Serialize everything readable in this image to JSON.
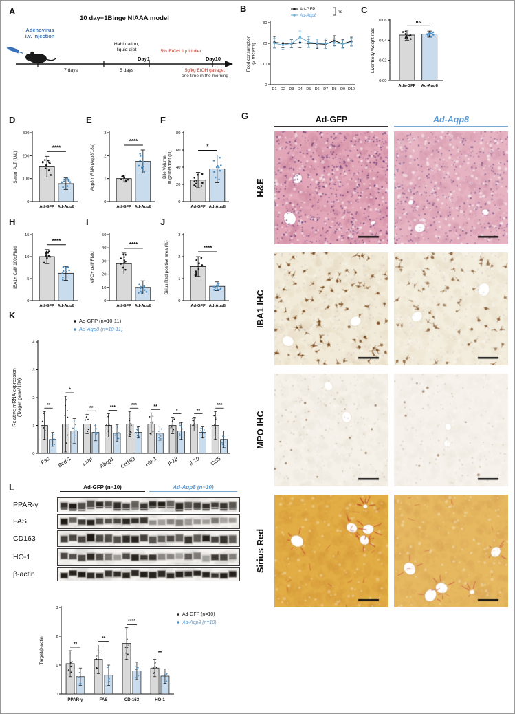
{
  "panels": {
    "A": "A",
    "B": "B",
    "C": "C",
    "D": "D",
    "E": "E",
    "F": "F",
    "G": "G",
    "H": "H",
    "I": "I",
    "J": "J",
    "K": "K",
    "L": "L"
  },
  "colors": {
    "accent_blue": "#5b9bd5",
    "bar_gray": "#d9d9d9",
    "bar_blue": "#c9dced",
    "dot_black": "#1a1a1a",
    "dot_blue": "#4d8fc4",
    "red_text": "#c0392b",
    "axis": "#111111"
  },
  "panelA": {
    "model_title": "10 day+1Binge NIAAA model",
    "adenovirus_label_line1": "Adenovirus",
    "adenovirus_label_line2": "i.v. injection",
    "habituation_line1": "Habituation,",
    "habituation_line2": "liquid diet",
    "etoh_diet_label": "5% EtOH liquid diet",
    "day1_label": "Day1",
    "day10_label": "Day10",
    "segment1_label": "7 days",
    "segment2_label": "5 days",
    "gavage_line1": "5g/kg EtOH gavage,",
    "gavage_line2": "one time in the morning"
  },
  "chart_data": {
    "B": {
      "type": "line",
      "ylabel_lines": [
        "Food consumption",
        "(2 mice/ml)"
      ],
      "x": [
        "D1",
        "D2",
        "D3",
        "D4",
        "D5",
        "D6",
        "D7",
        "D8",
        "D9",
        "D10"
      ],
      "ylim": [
        0,
        30
      ],
      "yticks": [
        0,
        10,
        20,
        30
      ],
      "series": [
        {
          "name": "Ad-GFP",
          "color": "#1a1a1a",
          "values": [
            20.5,
            20.0,
            19.8,
            20.3,
            20.0,
            19.8,
            19.5,
            21.3,
            19.8,
            21.0
          ],
          "errors": [
            2.8,
            2.2,
            2.0,
            2.4,
            2.0,
            2.3,
            2.0,
            2.4,
            2.0,
            2.0
          ]
        },
        {
          "name": "Ad-Aqp8",
          "color": "#6baed6",
          "values": [
            20.0,
            19.2,
            19.9,
            23.0,
            20.6,
            20.0,
            19.9,
            20.3,
            19.6,
            20.4
          ],
          "errors": [
            2.4,
            2.0,
            2.0,
            3.0,
            2.6,
            2.0,
            2.4,
            2.0,
            2.0,
            2.0
          ]
        }
      ],
      "sig": "ns"
    },
    "C": {
      "type": "pairbar",
      "ylabel_lines": [
        "Liver/Body Weight ratio"
      ],
      "categories": [
        "AdV-GFP",
        "Ad-Aqp8"
      ],
      "values": [
        0.045,
        0.046
      ],
      "errors": [
        0.005,
        0.003
      ],
      "ylim": [
        0,
        0.06
      ],
      "yticks": [
        0,
        0.02,
        0.04,
        0.06
      ],
      "ytick_labels": [
        "0.00",
        "0.02",
        "0.04",
        "0.06"
      ],
      "sig": "ns"
    },
    "D": {
      "type": "pairbar",
      "ylabel_lines": [
        "Serum ALT (U/L)"
      ],
      "categories": [
        "Ad-GFP",
        "Ad-Aqp8"
      ],
      "values": [
        152,
        78
      ],
      "errors": [
        45,
        25
      ],
      "ylim": [
        0,
        300
      ],
      "yticks": [
        0,
        100,
        200,
        300
      ],
      "sig": "****"
    },
    "E": {
      "type": "pairbar",
      "ylabel_lines": [
        "Aqp8 mRNA (Aqp8/18s)"
      ],
      "categories": [
        "Ad-GFP",
        "Ad-Aqp8"
      ],
      "values": [
        1.0,
        1.75
      ],
      "errors": [
        0.15,
        0.5
      ],
      "ylim": [
        0,
        3
      ],
      "yticks": [
        0,
        1,
        2,
        3
      ],
      "sig": "****"
    },
    "F": {
      "type": "pairbar",
      "ylabel_lines": [
        "Bile Volume",
        "in gallbladder (ul)"
      ],
      "categories": [
        "Ad-GFP",
        "Ad-Aqp8"
      ],
      "values": [
        25,
        38
      ],
      "errors": [
        9,
        16
      ],
      "ylim": [
        0,
        80
      ],
      "yticks": [
        0,
        20,
        40,
        60,
        80
      ],
      "sig": "*"
    },
    "H": {
      "type": "pairbar",
      "ylabel_lines": [
        "IBA1+ Cell/ 100xField"
      ],
      "categories": [
        "Ad-GFP",
        "Ad-Aqp8"
      ],
      "values": [
        10,
        6.2
      ],
      "errors": [
        1.6,
        1.6
      ],
      "ylim": [
        0,
        15
      ],
      "yticks": [
        0,
        5,
        10,
        15
      ],
      "sig": "****"
    },
    "I": {
      "type": "pairbar",
      "ylabel_lines": [
        "MPO+ cell/ Field"
      ],
      "categories": [
        "Ad-GFP",
        "Ad-Aqp8"
      ],
      "values": [
        28,
        10
      ],
      "errors": [
        8,
        5
      ],
      "ylim": [
        0,
        50
      ],
      "yticks": [
        0,
        10,
        20,
        30,
        40,
        50
      ],
      "sig": "****"
    },
    "J": {
      "type": "pairbar",
      "ylabel_lines": [
        "Sirius Red positive area (%)"
      ],
      "categories": [
        "Ad-GFP",
        "Ad-Aqp8"
      ],
      "values": [
        1.55,
        0.65
      ],
      "errors": [
        0.45,
        0.2
      ],
      "ylim": [
        0,
        3
      ],
      "yticks": [
        0,
        1,
        2,
        3
      ],
      "sig": "****"
    },
    "K": {
      "type": "groupbar",
      "ylabel_lines": [
        "Relative mRNA expression",
        "(Target gene/18s)"
      ],
      "categories": [
        "Fas",
        "Scd-1",
        "Lxrβ",
        "Abcg1",
        "Cd163",
        "Ho-1",
        "Il-1β",
        "Il-10",
        "Ccl5"
      ],
      "italic_categories": true,
      "series": [
        {
          "name": "Ad-GFP (n=10-11)",
          "values": [
            1.0,
            1.05,
            1.05,
            1.0,
            1.05,
            1.05,
            1.0,
            1.05,
            1.0
          ],
          "errors": [
            0.5,
            1.0,
            0.35,
            0.42,
            0.45,
            0.4,
            0.3,
            0.25,
            0.5
          ]
        },
        {
          "name": "Ad-Aqp8 (n=10-11)",
          "values": [
            0.5,
            0.8,
            0.75,
            0.72,
            0.75,
            0.72,
            0.8,
            0.75,
            0.5
          ],
          "errors": [
            0.25,
            0.45,
            0.3,
            0.3,
            0.2,
            0.25,
            0.3,
            0.2,
            0.3
          ]
        }
      ],
      "ylim": [
        0,
        4
      ],
      "yticks": [
        0,
        1,
        2,
        3,
        4
      ],
      "sig": [
        "**",
        "*",
        "**",
        "***",
        "***",
        "**",
        "*",
        "**",
        "***"
      ]
    },
    "L_quant": {
      "type": "groupbar",
      "ylabel_lines": [
        "Target/β-actin"
      ],
      "categories": [
        "PPAR-γ",
        "FAS",
        "CD-163",
        "HO-1"
      ],
      "series": [
        {
          "name": "Ad-GFP (n=10)",
          "values": [
            1.05,
            1.2,
            1.75,
            0.9
          ],
          "errors": [
            0.45,
            0.5,
            0.55,
            0.3
          ]
        },
        {
          "name": "Ad-Aqp8 (n=10)",
          "values": [
            0.6,
            0.65,
            0.8,
            0.62
          ],
          "errors": [
            0.3,
            0.35,
            0.3,
            0.25
          ]
        }
      ],
      "ylim": [
        0,
        3
      ],
      "yticks": [
        0,
        1,
        2,
        3
      ],
      "sig": [
        "**",
        "**",
        "****",
        "**"
      ]
    }
  },
  "histology": {
    "col_headers": [
      {
        "label": "Ad-GFP"
      },
      {
        "label": "Ad-Aqp8"
      }
    ],
    "row_labels": [
      "H&E",
      "IBA1 IHC",
      "MPO IHC",
      "Sirius Red"
    ],
    "stain_colors": {
      "he": {
        "base": "#e2a6b8",
        "mottle": "#c97f9b",
        "stain": "#6d4079"
      },
      "iba1": {
        "base": "#f1ead8",
        "mottle": "#e3d7bc",
        "stain": "#7a4a1d"
      },
      "mpo": {
        "base": "#f5f0e8",
        "mottle": "#eae2d4",
        "stain": "#8a6d50"
      },
      "sirius": {
        "base": "#e2ad45",
        "mottle": "#d09238",
        "stain": "#c03a2b"
      }
    }
  },
  "blots": {
    "group_headers": [
      {
        "label": "Ad-GFP (n=10)"
      },
      {
        "label": "Ad-Aqp8 (n=10)"
      }
    ],
    "rows": [
      {
        "label": "PPAR-γ"
      },
      {
        "label": "FAS"
      },
      {
        "label": "CD163"
      },
      {
        "label": "HO-1"
      },
      {
        "label": "β-actin"
      }
    ]
  }
}
